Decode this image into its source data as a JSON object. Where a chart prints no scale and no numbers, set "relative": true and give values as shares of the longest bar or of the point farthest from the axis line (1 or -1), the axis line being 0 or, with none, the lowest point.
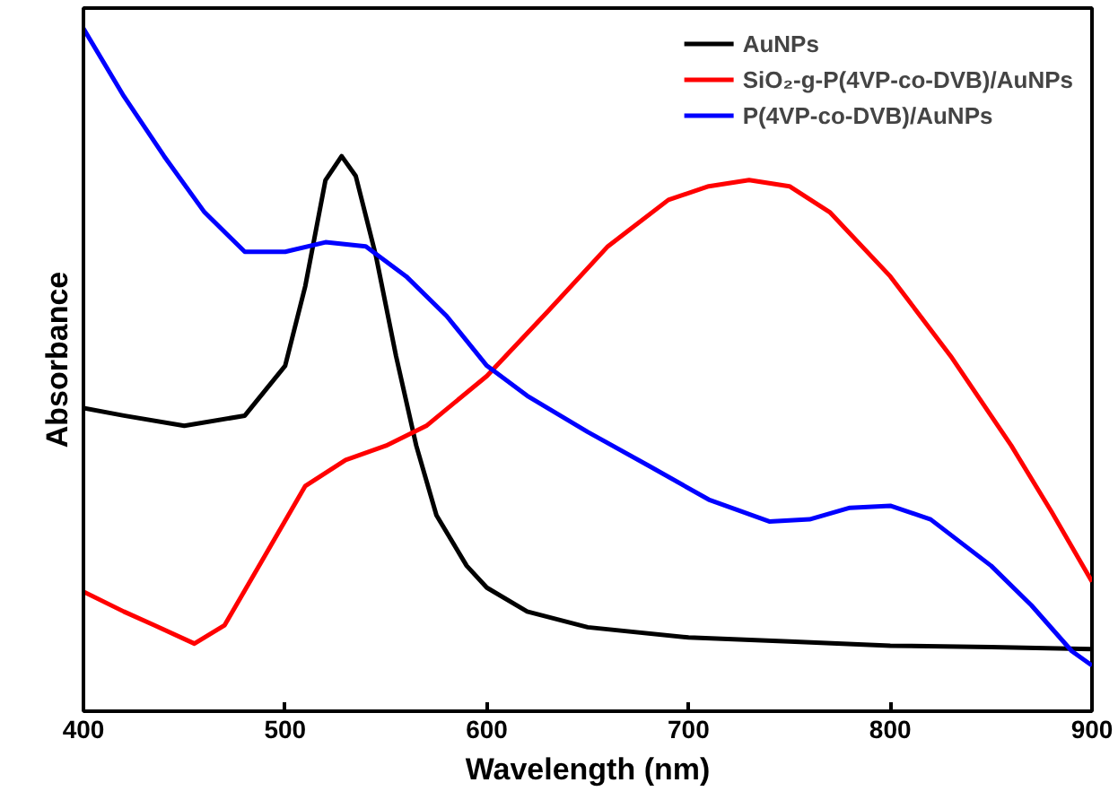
{
  "chart_data": {
    "type": "line",
    "xlabel": "Wavelength (nm)",
    "ylabel": "Absorbance",
    "relative": true,
    "xlim": [
      400,
      900
    ],
    "xticks": [
      400,
      500,
      600,
      700,
      800,
      900
    ],
    "grid": false,
    "legend": "top right",
    "line_style": "solid",
    "marker": "none",
    "series": [
      {
        "name": "AuNPs",
        "color": "#000000",
        "x": [
          400,
          420,
          450,
          480,
          500,
          510,
          520,
          528,
          535,
          545,
          555,
          565,
          575,
          590,
          600,
          620,
          650,
          700,
          750,
          800,
          850,
          900
        ],
        "values": [
          0.444,
          0.433,
          0.418,
          0.433,
          0.506,
          0.623,
          0.778,
          0.813,
          0.784,
          0.667,
          0.52,
          0.389,
          0.287,
          0.213,
          0.181,
          0.146,
          0.123,
          0.108,
          0.102,
          0.096,
          0.094,
          0.091
        ]
      },
      {
        "name": "SiO₂-g-P(4VP-co-DVB)/AuNPs",
        "color": "#ff0000",
        "x": [
          400,
          420,
          435,
          455,
          470,
          490,
          510,
          530,
          550,
          570,
          600,
          630,
          660,
          690,
          710,
          730,
          750,
          770,
          800,
          830,
          860,
          880,
          900
        ],
        "values": [
          0.175,
          0.146,
          0.126,
          0.099,
          0.126,
          0.228,
          0.33,
          0.368,
          0.389,
          0.418,
          0.491,
          0.585,
          0.681,
          0.749,
          0.769,
          0.778,
          0.769,
          0.731,
          0.637,
          0.52,
          0.389,
          0.292,
          0.19
        ]
      },
      {
        "name": "P(4VP-co-DVB)/AuNPs",
        "color": "#0000ff",
        "x": [
          400,
          420,
          440,
          460,
          480,
          500,
          520,
          540,
          560,
          580,
          600,
          620,
          650,
          680,
          710,
          740,
          760,
          780,
          800,
          820,
          850,
          870,
          890,
          900
        ],
        "values": [
          1.0,
          0.901,
          0.813,
          0.731,
          0.673,
          0.673,
          0.687,
          0.681,
          0.637,
          0.579,
          0.506,
          0.462,
          0.409,
          0.36,
          0.31,
          0.278,
          0.281,
          0.298,
          0.301,
          0.281,
          0.213,
          0.155,
          0.088,
          0.067
        ]
      }
    ]
  }
}
